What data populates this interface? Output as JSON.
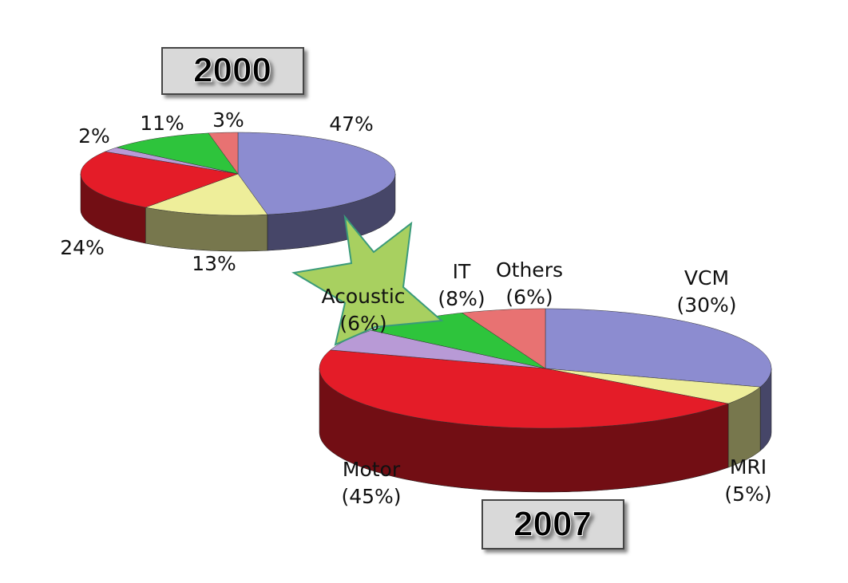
{
  "chart_data": [
    {
      "type": "pie",
      "title": "2000",
      "values": [
        47,
        13,
        24,
        2,
        11,
        3
      ],
      "value_labels": [
        "47%",
        "13%",
        "24%",
        "2%",
        "11%",
        "3%"
      ],
      "colors": [
        "#8c8cd0",
        "#eeee9a",
        "#e41c28",
        "#b89ad6",
        "#2ec43c",
        "#e87272"
      ]
    },
    {
      "type": "pie",
      "title": "2007",
      "categories": [
        "VCM",
        "MRI",
        "Motor",
        "Acoustic",
        "IT",
        "Others"
      ],
      "values": [
        30,
        5,
        45,
        6,
        8,
        6
      ],
      "value_labels": [
        "(30%)",
        "(5%)",
        "(45%)",
        "(6%)",
        "(8%)",
        "(6%)"
      ],
      "colors": [
        "#8c8cd0",
        "#eeee9a",
        "#e41c28",
        "#b89ad6",
        "#2ec43c",
        "#e87272"
      ]
    }
  ]
}
